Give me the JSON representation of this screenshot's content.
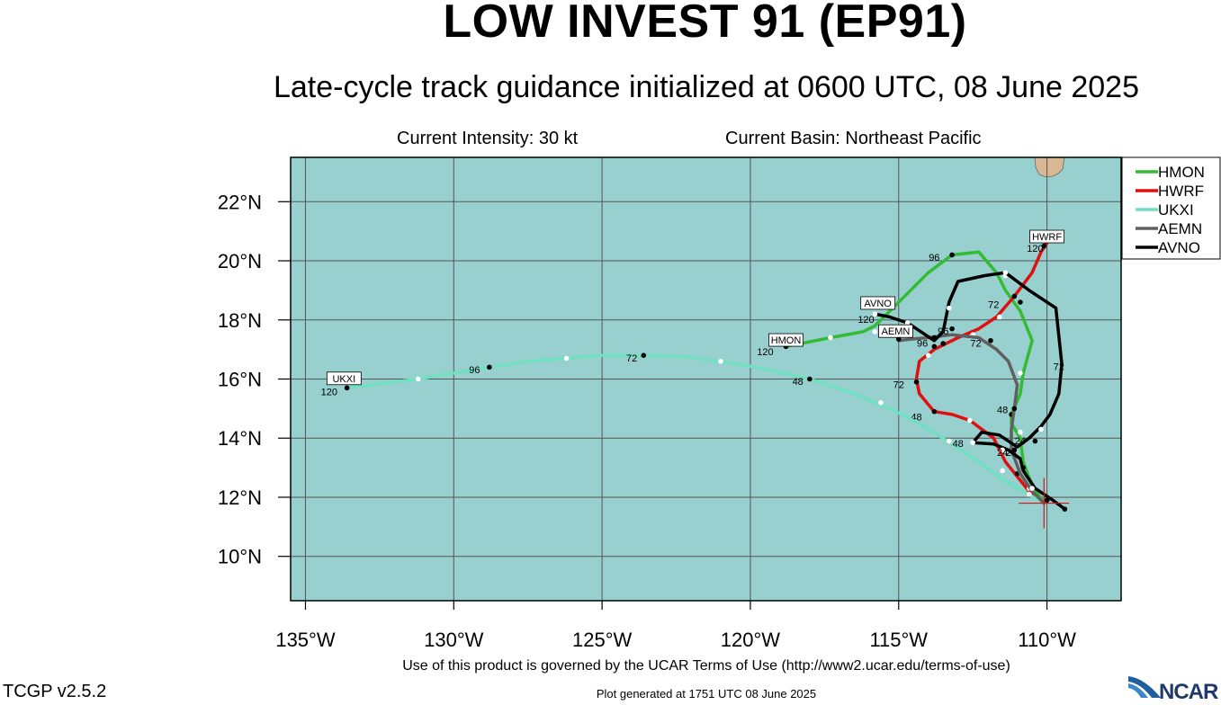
{
  "header": {
    "title": "LOW INVEST 91 (EP91)",
    "subtitle": "Late-cycle track guidance initialized at 0600 UTC, 08 June 2025",
    "intensity": "Current Intensity: 30 kt",
    "basin": "Current Basin: Northeast Pacific"
  },
  "footer": {
    "terms": "Use of this product is governed by the UCAR Terms of Use (http://www2.ucar.edu/terms-of-use)",
    "generated": "Plot generated at 1751 UTC   08 June 2025",
    "version": "TCGP v2.5.2",
    "logo_text": "NCAR"
  },
  "colors": {
    "ocean": "#98cfcf",
    "land": "#d8b894",
    "grid": "#555555",
    "HMON": "#33bb33",
    "HWRF": "#e01010",
    "UKXI": "#70e0c0",
    "AEMN": "#606060",
    "AVNO": "#000000"
  },
  "chart_data": {
    "type": "map-track",
    "xlim": [
      -135.5,
      -107.5
    ],
    "ylim": [
      8.5,
      23.5
    ],
    "x_ticks": [
      -135,
      -130,
      -125,
      -120,
      -115,
      -110
    ],
    "x_tick_labels": [
      "135°W",
      "130°W",
      "125°W",
      "120°W",
      "115°W",
      "110°W"
    ],
    "y_ticks": [
      10,
      12,
      14,
      16,
      18,
      20,
      22
    ],
    "y_tick_labels": [
      "10°N",
      "12°N",
      "14°N",
      "16°N",
      "18°N",
      "20°N",
      "22°N"
    ],
    "current_position": [
      -110.1,
      11.8
    ],
    "legend": [
      "HMON",
      "HWRF",
      "UKXI",
      "AEMN",
      "AVNO"
    ],
    "series": [
      {
        "name": "HMON",
        "end_label": "HMON",
        "end_label_pos": [
          -118.8,
          17.2
        ],
        "points": [
          [
            -110.1,
            11.8
          ],
          [
            -110.5,
            12.4
          ],
          [
            -110.8,
            13.2
          ],
          [
            -110.9,
            14.0
          ],
          [
            -111.2,
            14.5
          ],
          [
            -111.2,
            14.8
          ],
          [
            -110.9,
            15.5
          ],
          [
            -110.8,
            16.2
          ],
          [
            -110.5,
            17.3
          ],
          [
            -110.9,
            18.3
          ],
          [
            -111.4,
            19.0
          ],
          [
            -111.7,
            19.6
          ],
          [
            -112.3,
            20.3
          ],
          [
            -113.2,
            20.2
          ],
          [
            -114.0,
            19.6
          ],
          [
            -114.7,
            18.9
          ],
          [
            -115.4,
            18.2
          ],
          [
            -115.8,
            17.8
          ],
          [
            -116.2,
            17.6
          ],
          [
            -117.3,
            17.4
          ],
          [
            -118.8,
            17.1
          ]
        ],
        "dots": [
          [
            -110.9,
            14.2,
            "w"
          ],
          [
            -111.2,
            14.8,
            "k"
          ],
          [
            -110.9,
            16.2,
            "w"
          ],
          [
            -111.4,
            19.5,
            "w"
          ],
          [
            -113.2,
            20.2,
            "k"
          ],
          [
            -115.8,
            17.6,
            "w"
          ],
          [
            -117.3,
            17.4,
            "w"
          ],
          [
            -118.8,
            17.1,
            "k"
          ]
        ],
        "labels": [
          [
            -111.5,
            14.85,
            "48"
          ],
          [
            -113.8,
            20.0,
            "96"
          ],
          [
            -119.5,
            16.8,
            "120"
          ]
        ]
      },
      {
        "name": "HWRF",
        "end_label": "HWRF",
        "end_label_pos": [
          -110.0,
          20.7
        ],
        "points": [
          [
            -110.1,
            11.8
          ],
          [
            -110.4,
            12.0
          ],
          [
            -110.6,
            12.2
          ],
          [
            -111.0,
            12.7
          ],
          [
            -111.4,
            13.2
          ],
          [
            -111.8,
            14.0
          ],
          [
            -112.6,
            14.6
          ],
          [
            -113.2,
            14.8
          ],
          [
            -113.8,
            14.9
          ],
          [
            -114.3,
            15.5
          ],
          [
            -114.4,
            16.0
          ],
          [
            -114.3,
            16.6
          ],
          [
            -113.8,
            17.0
          ],
          [
            -113.0,
            17.4
          ],
          [
            -112.3,
            17.7
          ],
          [
            -111.7,
            18.1
          ],
          [
            -111.1,
            18.8
          ],
          [
            -110.5,
            19.6
          ],
          [
            -110.2,
            20.3
          ],
          [
            -110.0,
            20.6
          ]
        ],
        "dots": [
          [
            -110.6,
            12.3,
            "w"
          ],
          [
            -111.0,
            12.8,
            "k"
          ],
          [
            -112.6,
            14.6,
            "w"
          ],
          [
            -113.8,
            14.9,
            "k"
          ],
          [
            -114.4,
            15.9,
            "k"
          ],
          [
            -114.0,
            16.8,
            "w"
          ],
          [
            -113.5,
            17.2,
            "k"
          ],
          [
            -112.5,
            17.5,
            "w"
          ],
          [
            -111.6,
            18.1,
            "w"
          ],
          [
            -111.1,
            18.8,
            "k"
          ],
          [
            -110.1,
            20.5,
            "k"
          ]
        ],
        "labels": [
          [
            -114.4,
            14.6,
            "48"
          ],
          [
            -115.0,
            15.7,
            "72"
          ],
          [
            -111.8,
            18.4,
            "72"
          ],
          [
            -110.4,
            20.3,
            "120"
          ]
        ]
      },
      {
        "name": "UKXI",
        "end_label": "UKXI",
        "end_label_pos": [
          -133.7,
          15.9
        ],
        "points": [
          [
            -110.1,
            11.8
          ],
          [
            -110.8,
            12.2
          ],
          [
            -111.5,
            12.6
          ],
          [
            -112.3,
            13.2
          ],
          [
            -113.2,
            13.8
          ],
          [
            -114.3,
            14.5
          ],
          [
            -115.3,
            15.0
          ],
          [
            -116.5,
            15.5
          ],
          [
            -118.0,
            16.0
          ],
          [
            -119.8,
            16.4
          ],
          [
            -121.0,
            16.6
          ],
          [
            -122.2,
            16.75
          ],
          [
            -123.6,
            16.8
          ],
          [
            -125.0,
            16.8
          ],
          [
            -126.2,
            16.7
          ],
          [
            -127.5,
            16.6
          ],
          [
            -128.8,
            16.4
          ],
          [
            -130.0,
            16.2
          ],
          [
            -131.2,
            16.0
          ],
          [
            -132.4,
            15.85
          ],
          [
            -133.6,
            15.7
          ]
        ],
        "dots": [
          [
            -110.6,
            12.1,
            "w"
          ],
          [
            -111.5,
            12.9,
            "w"
          ],
          [
            -113.3,
            13.9,
            "w"
          ],
          [
            -115.6,
            15.2,
            "w"
          ],
          [
            -118.0,
            16.0,
            "k"
          ],
          [
            -121.0,
            16.6,
            "w"
          ],
          [
            -123.6,
            16.8,
            "k"
          ],
          [
            -126.2,
            16.7,
            "w"
          ],
          [
            -128.8,
            16.4,
            "k"
          ],
          [
            -131.2,
            16.0,
            "w"
          ],
          [
            -133.6,
            15.7,
            "k"
          ]
        ],
        "labels": [
          [
            -113.0,
            13.7,
            "48"
          ],
          [
            -118.4,
            15.8,
            "48"
          ],
          [
            -124.0,
            16.6,
            "72"
          ],
          [
            -129.3,
            16.2,
            "96"
          ],
          [
            -134.2,
            15.45,
            "120"
          ]
        ]
      },
      {
        "name": "AEMN",
        "end_label": "AEMN",
        "end_label_pos": [
          -115.1,
          17.5
        ],
        "points": [
          [
            -110.1,
            11.8
          ],
          [
            -110.5,
            12.2
          ],
          [
            -110.9,
            12.8
          ],
          [
            -111.2,
            13.6
          ],
          [
            -111.2,
            14.3
          ],
          [
            -111.1,
            15.0
          ],
          [
            -111.0,
            15.8
          ],
          [
            -111.3,
            16.6
          ],
          [
            -111.7,
            17.0
          ],
          [
            -112.3,
            17.4
          ],
          [
            -113.2,
            17.5
          ],
          [
            -114.0,
            17.4
          ],
          [
            -114.6,
            17.35
          ],
          [
            -115.0,
            17.3
          ]
        ],
        "dots": [
          [
            -111.1,
            13.6,
            "k"
          ],
          [
            -111.1,
            15.0,
            "k"
          ],
          [
            -111.9,
            17.3,
            "k"
          ],
          [
            -113.2,
            17.7,
            "k"
          ],
          [
            -113.8,
            17.4,
            "k"
          ],
          [
            -115.0,
            17.35,
            "k"
          ]
        ],
        "labels": [
          [
            -111.2,
            13.4,
            "24"
          ],
          [
            -112.4,
            17.1,
            "72"
          ],
          [
            -113.5,
            17.5,
            "96"
          ],
          [
            -114.2,
            17.1,
            "96"
          ]
        ]
      },
      {
        "name": "AVNO",
        "end_label": "AVNO",
        "end_label_pos": [
          -115.7,
          18.45
        ],
        "points": [
          [
            -109.4,
            11.6
          ],
          [
            -109.8,
            11.9
          ],
          [
            -110.4,
            12.3
          ],
          [
            -110.8,
            12.9
          ],
          [
            -110.9,
            13.3
          ],
          [
            -111.3,
            13.6
          ],
          [
            -111.8,
            13.8
          ],
          [
            -112.5,
            13.85
          ],
          [
            -112.2,
            14.2
          ],
          [
            -111.6,
            14.1
          ],
          [
            -111.0,
            13.7
          ],
          [
            -110.6,
            14.0
          ],
          [
            -110.2,
            14.4
          ],
          [
            -109.9,
            14.8
          ],
          [
            -109.6,
            15.5
          ],
          [
            -109.5,
            16.5
          ],
          [
            -109.7,
            18.4
          ],
          [
            -110.6,
            19.0
          ],
          [
            -111.4,
            19.6
          ],
          [
            -112.1,
            19.5
          ],
          [
            -113.0,
            19.3
          ],
          [
            -113.3,
            18.6
          ],
          [
            -113.5,
            17.6
          ],
          [
            -113.8,
            17.3
          ],
          [
            -114.7,
            17.9
          ],
          [
            -115.3,
            18.1
          ],
          [
            -115.8,
            18.2
          ]
        ],
        "dots": [
          [
            -109.4,
            11.6,
            "k"
          ],
          [
            -110.0,
            11.9,
            "k"
          ],
          [
            -110.5,
            12.3,
            "w"
          ],
          [
            -110.8,
            13.0,
            "k"
          ],
          [
            -111.5,
            13.6,
            "w"
          ],
          [
            -112.5,
            13.85,
            "w"
          ],
          [
            -110.4,
            13.9,
            "k"
          ],
          [
            -110.2,
            14.3,
            "w"
          ],
          [
            -111.4,
            19.6,
            "w"
          ],
          [
            -110.9,
            18.6,
            "k"
          ],
          [
            -113.3,
            18.4,
            "w"
          ],
          [
            -113.8,
            17.1,
            "k"
          ],
          [
            -114.7,
            17.9,
            "w"
          ],
          [
            -115.8,
            18.2,
            "w"
          ]
        ],
        "labels": [
          [
            -111.5,
            13.4,
            "24"
          ],
          [
            -110.9,
            13.8,
            "24"
          ],
          [
            -109.6,
            16.3,
            "72"
          ],
          [
            -116.1,
            17.9,
            "120"
          ]
        ]
      }
    ]
  }
}
